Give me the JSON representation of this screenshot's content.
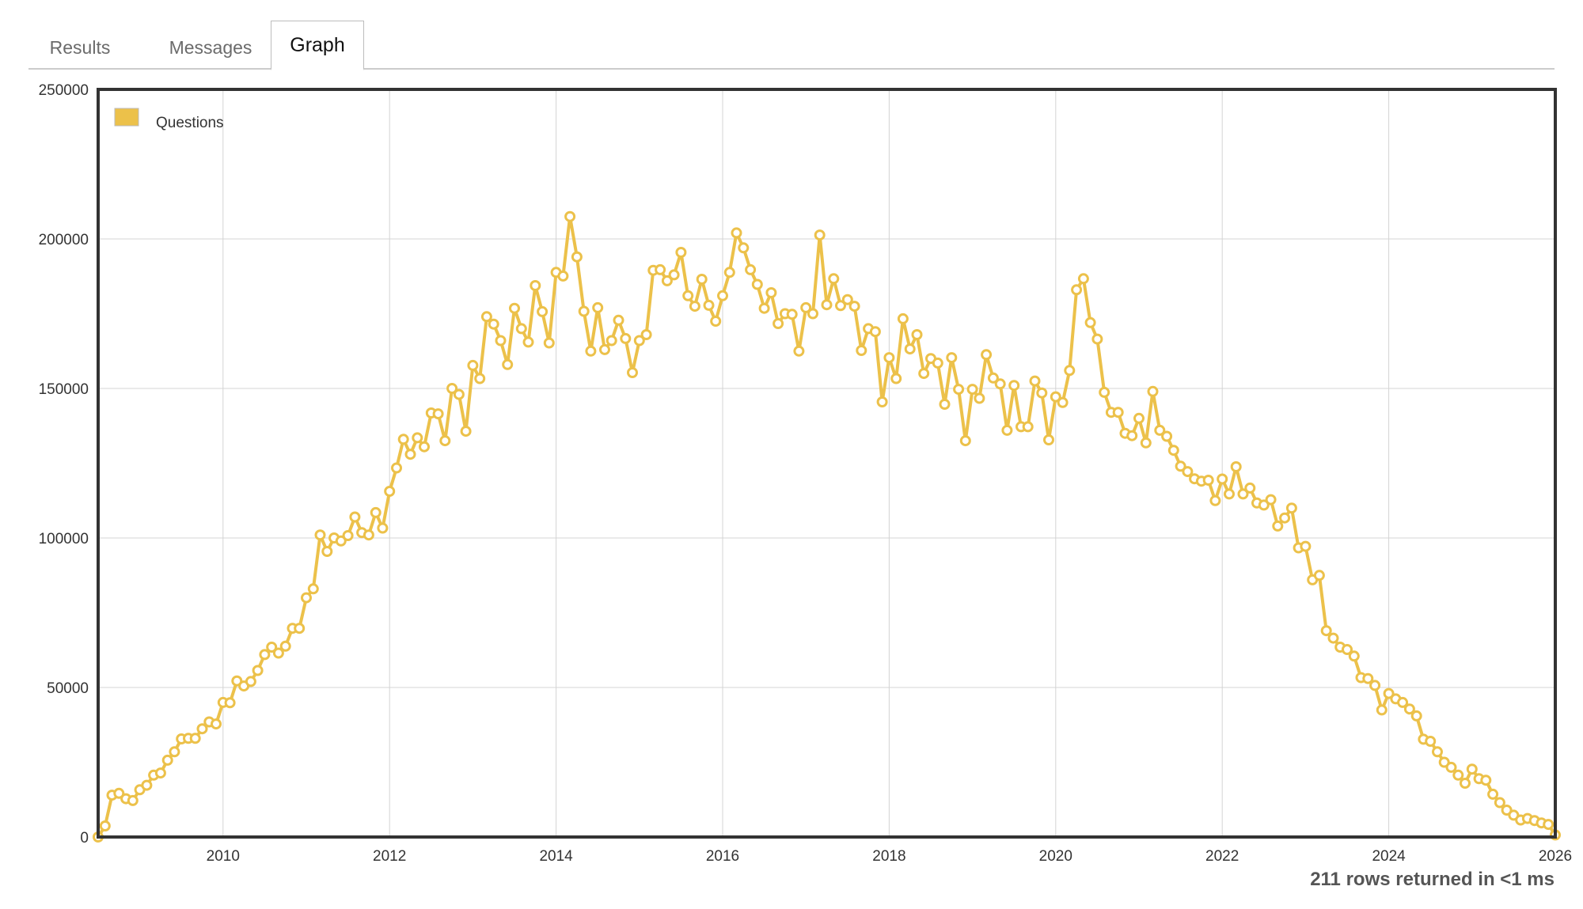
{
  "tabs": [
    {
      "label": "Results",
      "active": false
    },
    {
      "label": "Messages",
      "active": false
    },
    {
      "label": "Graph",
      "active": true
    }
  ],
  "footer": {
    "status": "211 rows returned in <1 ms"
  },
  "colors": {
    "series": "#ecc14a",
    "frame": "#333333",
    "grid": "#d4d4d4"
  },
  "chart_data": {
    "type": "line",
    "title": "",
    "xlabel": "",
    "ylabel": "",
    "xlim": [
      2008.5,
      2026
    ],
    "ylim": [
      0,
      250000
    ],
    "x_ticks": [
      "2010",
      "2012",
      "2014",
      "2016",
      "2018",
      "2020",
      "2022",
      "2024",
      "2026"
    ],
    "y_ticks": [
      "0",
      "50000",
      "100000",
      "150000",
      "200000",
      "250000"
    ],
    "grid": true,
    "legend": {
      "position": "top-left",
      "entries": [
        "Questions"
      ]
    },
    "series": [
      {
        "name": "Questions",
        "x_start": "2008-07",
        "interval": "month",
        "values": [
          0,
          3700,
          14000,
          14600,
          12800,
          12200,
          15800,
          17300,
          20700,
          21400,
          25700,
          28500,
          32800,
          33000,
          33000,
          36200,
          38500,
          37800,
          45000,
          44900,
          52200,
          50500,
          52000,
          55700,
          61000,
          63500,
          61500,
          63800,
          69800,
          69800,
          80000,
          83000,
          101000,
          95500,
          100000,
          99000,
          100800,
          107000,
          101800,
          101000,
          108500,
          103300,
          115600,
          123400,
          133000,
          128000,
          133500,
          130500,
          141800,
          141500,
          132500,
          150000,
          148000,
          135700,
          157700,
          153300,
          174000,
          171500,
          166000,
          158000,
          176800,
          170000,
          165500,
          184400,
          175700,
          165200,
          188800,
          187600,
          207500,
          194000,
          175800,
          162500,
          177000,
          163000,
          166000,
          172800,
          166700,
          155300,
          166000,
          168000,
          189500,
          189700,
          186000,
          188000,
          195500,
          181000,
          177500,
          186500,
          177800,
          172500,
          181000,
          188800,
          202000,
          197000,
          189700,
          184800,
          176800,
          182000,
          171700,
          175000,
          174800,
          162500,
          177000,
          175000,
          201300,
          178000,
          186700,
          177700,
          179700,
          177500,
          162700,
          170000,
          169000,
          145500,
          160300,
          153300,
          173300,
          163200,
          168000,
          155000,
          160000,
          158500,
          144700,
          160300,
          149700,
          132500,
          149700,
          146700,
          161300,
          153500,
          151500,
          136000,
          151000,
          137200,
          137200,
          152500,
          148500,
          132800,
          147200,
          145300,
          156000,
          183000,
          186700,
          172000,
          166500,
          148700,
          142000,
          142000,
          135000,
          134200,
          140000,
          131800,
          149000,
          136000,
          134000,
          129300,
          124000,
          122200,
          119800,
          119000,
          119300,
          112500,
          119700,
          114700,
          123800,
          114700,
          116700,
          111700,
          111000,
          112800,
          104000,
          106700,
          110000,
          96700,
          97200,
          86000,
          87500,
          69000,
          66500,
          63500,
          62700,
          60500,
          53300,
          53000,
          50700,
          42500,
          48000,
          46200,
          45000,
          42800,
          40500,
          32700,
          32000,
          28500,
          25000,
          23300,
          20700,
          18000,
          22700,
          19500,
          19000,
          14300,
          11500,
          9000,
          7300,
          5700,
          6200,
          5500,
          4700,
          4200,
          700
        ]
      }
    ]
  }
}
